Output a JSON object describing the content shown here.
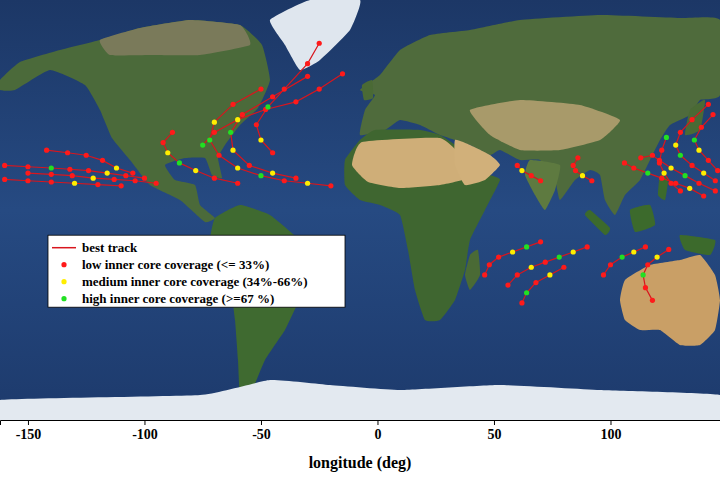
{
  "chart_data": {
    "type": "scatter",
    "xlabel": "longitude (deg)",
    "xlim": [
      -162,
      147
    ],
    "xticks": [
      -150,
      -100,
      -50,
      0,
      50,
      100
    ],
    "ylim": [
      -80,
      85
    ],
    "tick_labels": "x",
    "legend": "left",
    "series": [
      {
        "name": "best track",
        "type": "line",
        "line_style": "solid",
        "color": "#d8161e",
        "x": [
          -100,
          -108,
          -116,
          -124,
          -132,
          -140,
          -150,
          -160,
          null,
          -95,
          -104,
          -113,
          -122,
          -131,
          -140,
          -150,
          null,
          -105,
          -112,
          -118,
          -125,
          -133,
          -142,
          null,
          -110,
          -120,
          -130,
          -140,
          -150,
          -160,
          null,
          -20,
          -30,
          -40,
          -50,
          -60,
          -68,
          -72,
          -70,
          -62,
          -50,
          null,
          -35,
          -45,
          -55,
          -62,
          -63,
          -58,
          -45,
          -30,
          null,
          -60,
          -70,
          -78,
          -85,
          -90,
          -92,
          -88,
          null,
          -75,
          -70,
          -60,
          -48,
          -35,
          -25,
          -15,
          null,
          -45,
          -50,
          -52,
          -47,
          -40,
          -30,
          -25,
          null,
          92,
          88,
          85,
          84,
          86,
          null,
          70,
          66,
          62,
          60,
          null,
          145,
          138,
          132,
          126,
          121,
          118,
          113,
          null,
          145,
          140,
          135,
          130,
          128,
          130,
          135,
          142,
          null,
          140,
          134,
          128,
          122,
          116,
          110,
          106,
          null,
          146,
          142,
          138,
          136,
          139,
          144,
          null,
          130,
          126,
          123,
          121,
          122,
          124,
          null,
          90,
          84,
          78,
          72,
          66,
          60,
          56,
          null,
          70,
          64,
          58,
          52,
          48,
          46,
          null,
          115,
          110,
          105,
          100,
          97,
          null,
          125,
          120,
          116,
          114,
          115,
          118,
          null,
          80,
          74,
          68,
          64,
          62
        ],
        "values": [
          15,
          16,
          17,
          18,
          18.5,
          19,
          19.5,
          20,
          null,
          13,
          14,
          14.5,
          15,
          16,
          16.5,
          17,
          null,
          17,
          19,
          22,
          24,
          25,
          26,
          null,
          12,
          12.5,
          13,
          13.5,
          14,
          14.5,
          null,
          12,
          13,
          14,
          16,
          19,
          24,
          30,
          37,
          44,
          50,
          null,
          15,
          17,
          20,
          26,
          33,
          40,
          47,
          55,
          null,
          13,
          15,
          18,
          21,
          25,
          29,
          33,
          null,
          28,
          33,
          38,
          42,
          45,
          50,
          56,
          null,
          25,
          30,
          36,
          43,
          50,
          60,
          68,
          null,
          14,
          16,
          18,
          20,
          23,
          null,
          14,
          16,
          18,
          20,
          null,
          10,
          13,
          16,
          19,
          22,
          24,
          23,
          null,
          14,
          17,
          20,
          24,
          28,
          33,
          38,
          44,
          null,
          8,
          11,
          13,
          15,
          17,
          19,
          21,
          null,
          18,
          22,
          26,
          30,
          35,
          40,
          null,
          10,
          13,
          17,
          21,
          26,
          31,
          null,
          -12,
          -14,
          -16,
          -18,
          -20,
          -23,
          -27,
          null,
          -10,
          -12,
          -14,
          -16,
          -19,
          -23,
          null,
          -12,
          -14,
          -16,
          -19,
          -23,
          null,
          -13,
          -16,
          -19,
          -23,
          -28,
          -33,
          null,
          -20,
          -23,
          -26,
          -30,
          -34
        ]
      },
      {
        "name": "low inner core coverage (<= 33%)",
        "type": "scatter",
        "marker": "circle",
        "color": "#ff1a1a",
        "x": [
          -100,
          -108,
          -124,
          -132,
          -150,
          -160,
          -95,
          -104,
          -113,
          -131,
          -140,
          -150,
          -105,
          -118,
          -125,
          -133,
          -142,
          -110,
          -120,
          -140,
          -150,
          -160,
          -20,
          -40,
          -68,
          -62,
          -50,
          -35,
          -55,
          -58,
          -45,
          -30,
          -60,
          -70,
          -92,
          -88,
          -70,
          -48,
          -35,
          -25,
          -15,
          -45,
          -52,
          -40,
          -30,
          -25,
          92,
          85,
          84,
          86,
          70,
          66,
          60,
          145,
          138,
          121,
          118,
          113,
          145,
          135,
          130,
          135,
          142,
          140,
          128,
          122,
          110,
          106,
          146,
          142,
          139,
          144,
          130,
          126,
          121,
          122,
          90,
          72,
          60,
          56,
          70,
          52,
          48,
          46,
          115,
          100,
          97,
          125,
          116,
          115,
          118,
          80,
          68,
          62
        ],
        "values": [
          15,
          16,
          18,
          18.5,
          19.5,
          20,
          13,
          14,
          14.5,
          16,
          16.5,
          17,
          17,
          22,
          24,
          25,
          26,
          12,
          12.5,
          13.5,
          14,
          14.5,
          12,
          14,
          24,
          44,
          50,
          15,
          20,
          40,
          47,
          55,
          13,
          15,
          29,
          33,
          33,
          42,
          45,
          50,
          56,
          25,
          36,
          50,
          60,
          68,
          14,
          18,
          20,
          23,
          14,
          16,
          20,
          10,
          13,
          22,
          24,
          23,
          14,
          20,
          33,
          38,
          44,
          8,
          13,
          15,
          19,
          21,
          18,
          22,
          35,
          40,
          10,
          13,
          21,
          26,
          -12,
          -18,
          -23,
          -27,
          -10,
          -16,
          -19,
          -23,
          -12,
          -19,
          -23,
          -13,
          -19,
          -28,
          -33,
          -20,
          -26,
          -34
        ]
      },
      {
        "name": "medium inner core coverage (34%-66%)",
        "type": "scatter",
        "marker": "circle",
        "color": "#ffee00",
        "x": [
          -116,
          -122,
          -112,
          -130,
          -30,
          -60,
          -70,
          -45,
          -62,
          -78,
          -90,
          -60,
          -50,
          88,
          62,
          126,
          140,
          128,
          134,
          138,
          123,
          84,
          66,
          58,
          110,
          120,
          74
        ],
        "values": [
          17,
          15,
          19,
          13,
          13,
          19,
          37,
          17,
          26,
          18,
          25,
          38,
          30,
          16,
          18,
          19,
          17,
          28,
          11,
          26,
          17,
          -14,
          -20,
          -14,
          -14,
          -16,
          -23
        ]
      },
      {
        "name": "high inner core coverage (>=67 %)",
        "type": "scatter",
        "marker": "circle",
        "color": "#22e022",
        "x": [
          -140,
          -50,
          -72,
          -63,
          -85,
          -75,
          -47,
          132,
          130,
          116,
          136,
          124,
          78,
          64,
          105,
          114,
          64
        ],
        "values": [
          19,
          16,
          30,
          33,
          21,
          28,
          43,
          16,
          24,
          17,
          30,
          31,
          -16,
          -12,
          -16,
          -23,
          -30
        ]
      }
    ]
  }
}
